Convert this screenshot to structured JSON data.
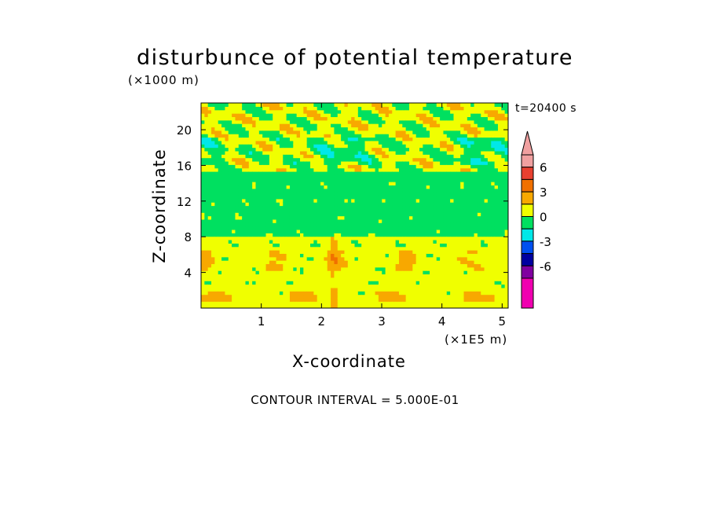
{
  "chart_data": {
    "type": "heatmap",
    "title": "disturbunce of potential temperature",
    "xlabel": "X-coordinate",
    "ylabel": "Z-coordinate",
    "x_unit": "(×1E5 m)",
    "y_unit": "(×1000 m)",
    "time_label": "t=20400 s",
    "contour_interval_label": "CONTOUR INTERVAL = 5.000E-01",
    "xlim": [
      0,
      5.1
    ],
    "ylim": [
      0,
      23
    ],
    "x_ticks": [
      1,
      2,
      3,
      4,
      5
    ],
    "y_ticks": [
      4,
      8,
      12,
      16,
      20
    ],
    "colorbar": {
      "tick_values": [
        6,
        3,
        0,
        -3,
        -6
      ],
      "tick_labels": [
        "6",
        "3",
        "0",
        "-3",
        "-6"
      ],
      "levels": [
        {
          "lo": 7.5,
          "hi": null,
          "color": "#f0a0a0"
        },
        {
          "lo": 6,
          "hi": 7.5,
          "color": "#f0a0a0"
        },
        {
          "lo": 4.5,
          "hi": 6,
          "color": "#e84030"
        },
        {
          "lo": 3,
          "hi": 4.5,
          "color": "#f07000"
        },
        {
          "lo": 1.5,
          "hi": 3,
          "color": "#f8a800"
        },
        {
          "lo": 0,
          "hi": 1.5,
          "color": "#f0ff00"
        },
        {
          "lo": -1.5,
          "hi": 0,
          "color": "#00e060"
        },
        {
          "lo": -3,
          "hi": -1.5,
          "color": "#00e8e8"
        },
        {
          "lo": -4.5,
          "hi": -3,
          "color": "#0050f0"
        },
        {
          "lo": -6,
          "hi": -4.5,
          "color": "#0000a0"
        },
        {
          "lo": -7.5,
          "hi": -6,
          "color": "#8000a0"
        },
        {
          "lo": null,
          "hi": -7.5,
          "color": "#f000b0"
        }
      ]
    },
    "field_bands": [
      {
        "z_range": [
          0,
          1.5
        ],
        "dominant_value": 0.8,
        "color": "#f0ff00"
      },
      {
        "z_range": [
          1.5,
          8
        ],
        "dominant_value": 0.5,
        "color": "#f0ff00"
      },
      {
        "z_range": [
          8,
          15.5
        ],
        "dominant_value": -0.5,
        "color": "#00e060"
      },
      {
        "z_range": [
          15.5,
          20
        ],
        "dominant_value": 0.3,
        "color": "#f0ff00"
      },
      {
        "z_range": [
          20,
          23
        ],
        "dominant_value": 0.5,
        "color": "#f0ff00"
      }
    ],
    "features": [
      {
        "desc": "orange positive layer",
        "z": 5.5,
        "value": 2
      },
      {
        "desc": "orange positive layer",
        "z": 1.3,
        "value": 2
      },
      {
        "desc": "cyan negative patches",
        "z": 17.5,
        "value": -2
      },
      {
        "desc": "orange/red patches",
        "z": 18.5,
        "value": 3
      }
    ]
  }
}
